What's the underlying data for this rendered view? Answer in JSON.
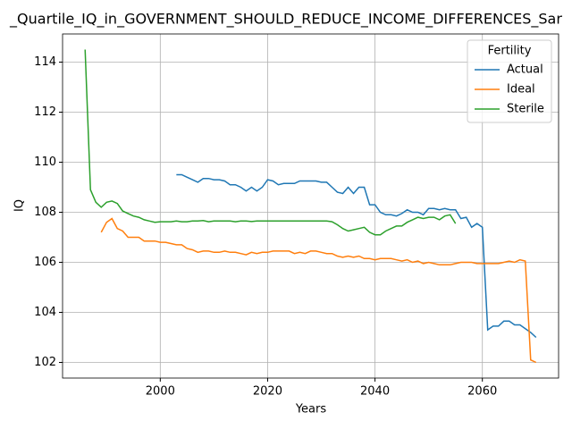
{
  "chart_data": {
    "type": "line",
    "title": "_Quartile_IQ_in_GOVERNMENT_SHOULD_REDUCE_INCOME_DIFFERENCES_Sar",
    "xlabel": "Years",
    "ylabel": "IQ",
    "legend_title": "Fertility",
    "legend": "upper right",
    "grid": true,
    "xlim": [
      1981.8,
      2074.2
    ],
    "xticks": [
      2000,
      2020,
      2040,
      2060
    ],
    "ylim": [
      101.375,
      115.125
    ],
    "yticks": [
      102,
      104,
      106,
      108,
      110,
      112,
      114
    ],
    "x": [
      1986,
      1987,
      1988,
      1989,
      1990,
      1991,
      1992,
      1993,
      1994,
      1995,
      1996,
      1997,
      1998,
      1999,
      2000,
      2001,
      2002,
      2003,
      2004,
      2005,
      2006,
      2007,
      2008,
      2009,
      2010,
      2011,
      2012,
      2013,
      2014,
      2015,
      2016,
      2017,
      2018,
      2019,
      2020,
      2021,
      2022,
      2023,
      2024,
      2025,
      2026,
      2027,
      2028,
      2029,
      2030,
      2031,
      2032,
      2033,
      2034,
      2035,
      2036,
      2037,
      2038,
      2039,
      2040,
      2041,
      2042,
      2043,
      2044,
      2045,
      2046,
      2047,
      2048,
      2049,
      2050,
      2051,
      2052,
      2053,
      2054,
      2055,
      2056,
      2057,
      2058,
      2059,
      2060,
      2061,
      2062,
      2063,
      2064,
      2065,
      2066,
      2067,
      2068,
      2069,
      2070
    ],
    "series": [
      {
        "name": "Actual",
        "color": "#1f77b4",
        "values": [
          null,
          null,
          null,
          null,
          null,
          null,
          null,
          null,
          null,
          null,
          null,
          null,
          null,
          null,
          null,
          null,
          null,
          109.5,
          109.5,
          109.4,
          109.3,
          109.2,
          109.35,
          109.35,
          109.3,
          109.3,
          109.25,
          109.1,
          109.1,
          109.0,
          108.85,
          109.0,
          108.85,
          109.0,
          109.3,
          109.25,
          109.1,
          109.15,
          109.15,
          109.15,
          109.25,
          109.25,
          109.25,
          109.25,
          109.2,
          109.2,
          109.0,
          108.8,
          108.75,
          109.0,
          108.75,
          109.0,
          109.0,
          108.3,
          108.3,
          108.0,
          107.9,
          107.9,
          107.85,
          107.95,
          108.1,
          108.0,
          108.0,
          107.9,
          108.15,
          108.15,
          108.1,
          108.15,
          108.1,
          108.1,
          107.75,
          107.8,
          107.4,
          107.55,
          107.4,
          103.3,
          103.45,
          103.45,
          103.65,
          103.65,
          103.5,
          103.5,
          103.35,
          103.2,
          103.0
        ]
      },
      {
        "name": "Ideal",
        "color": "#ff7f0e",
        "values": [
          null,
          null,
          null,
          107.2,
          107.6,
          107.75,
          107.35,
          107.25,
          107.0,
          107.0,
          107.0,
          106.85,
          106.85,
          106.85,
          106.8,
          106.8,
          106.75,
          106.7,
          106.7,
          106.55,
          106.5,
          106.4,
          106.45,
          106.45,
          106.4,
          106.4,
          106.45,
          106.4,
          106.4,
          106.35,
          106.3,
          106.4,
          106.35,
          106.4,
          106.4,
          106.45,
          106.45,
          106.45,
          106.45,
          106.35,
          106.4,
          106.35,
          106.45,
          106.45,
          106.4,
          106.35,
          106.35,
          106.25,
          106.2,
          106.25,
          106.2,
          106.25,
          106.15,
          106.15,
          106.1,
          106.15,
          106.15,
          106.15,
          106.1,
          106.05,
          106.1,
          106.0,
          106.05,
          105.95,
          106.0,
          105.95,
          105.9,
          105.9,
          105.9,
          105.95,
          106.0,
          106.0,
          106.0,
          105.95,
          105.95,
          105.95,
          105.95,
          105.95,
          106.0,
          106.05,
          106.0,
          106.1,
          106.05,
          102.1,
          102.0
        ]
      },
      {
        "name": "Sterile",
        "color": "#2ca02c",
        "values": [
          114.5,
          108.9,
          108.4,
          108.2,
          108.4,
          108.45,
          108.35,
          108.05,
          107.95,
          107.85,
          107.8,
          107.7,
          107.65,
          107.6,
          107.62,
          107.62,
          107.62,
          107.65,
          107.62,
          107.62,
          107.65,
          107.65,
          107.67,
          107.62,
          107.65,
          107.65,
          107.65,
          107.65,
          107.62,
          107.65,
          107.65,
          107.63,
          107.65,
          107.65,
          107.65,
          107.65,
          107.65,
          107.65,
          107.65,
          107.65,
          107.65,
          107.65,
          107.65,
          107.65,
          107.65,
          107.65,
          107.62,
          107.5,
          107.35,
          107.25,
          107.3,
          107.35,
          107.4,
          107.2,
          107.1,
          107.1,
          107.25,
          107.35,
          107.45,
          107.45,
          107.6,
          107.7,
          107.8,
          107.75,
          107.8,
          107.8,
          107.7,
          107.85,
          107.9,
          107.55,
          null,
          null,
          null,
          null,
          null,
          null,
          null,
          null,
          null,
          null,
          null,
          null,
          null,
          null,
          null
        ]
      }
    ]
  }
}
